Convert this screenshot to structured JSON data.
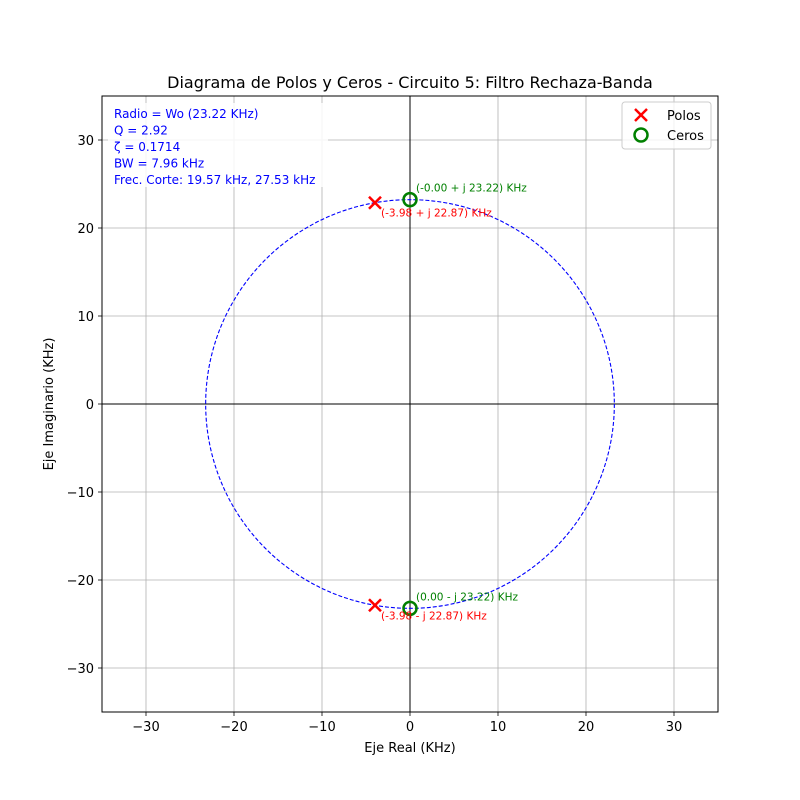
{
  "chart_data": {
    "type": "scatter",
    "title": "Diagrama de Polos y Ceros - Circuito 5: Filtro Rechaza-Banda",
    "xlabel": "Eje Real (KHz)",
    "ylabel": "Eje Imaginario (KHz)",
    "xlim": [
      -35,
      35
    ],
    "ylim": [
      -35,
      35
    ],
    "xticks": [
      -30,
      -20,
      -10,
      0,
      10,
      20,
      30
    ],
    "yticks": [
      -30,
      -20,
      -10,
      0,
      10,
      20,
      30
    ],
    "xtick_labels": [
      "−30",
      "−20",
      "−10",
      "0",
      "10",
      "20",
      "30"
    ],
    "ytick_labels": [
      "−30",
      "−20",
      "−10",
      "0",
      "10",
      "20",
      "30"
    ],
    "grid": true,
    "legend_position": "top-right",
    "circle": {
      "radius": 23.22,
      "color": "#0000ff",
      "style": "dashed"
    },
    "series": [
      {
        "name": "Polos",
        "marker": "x",
        "color": "#ff0000",
        "points": [
          {
            "x": -3.98,
            "y": 22.87,
            "label": "(-3.98 + j 22.87) KHz"
          },
          {
            "x": -3.98,
            "y": -22.87,
            "label": "(-3.98 - j 22.87) KHz"
          }
        ]
      },
      {
        "name": "Ceros",
        "marker": "o",
        "color": "#008000",
        "points": [
          {
            "x": 0.0,
            "y": 23.22,
            "label": "(-0.00 + j 23.22) KHz"
          },
          {
            "x": 0.0,
            "y": -23.22,
            "label": "(0.00 - j 23.22) KHz"
          }
        ]
      }
    ],
    "info_box": {
      "color": "#0000ff",
      "lines": [
        "Radio = Wo (23.22 KHz)",
        "Q = 2.92",
        "ζ = 0.1714",
        "BW = 7.96 kHz",
        "Frec. Corte: 19.57 kHz, 27.53 kHz"
      ]
    }
  }
}
